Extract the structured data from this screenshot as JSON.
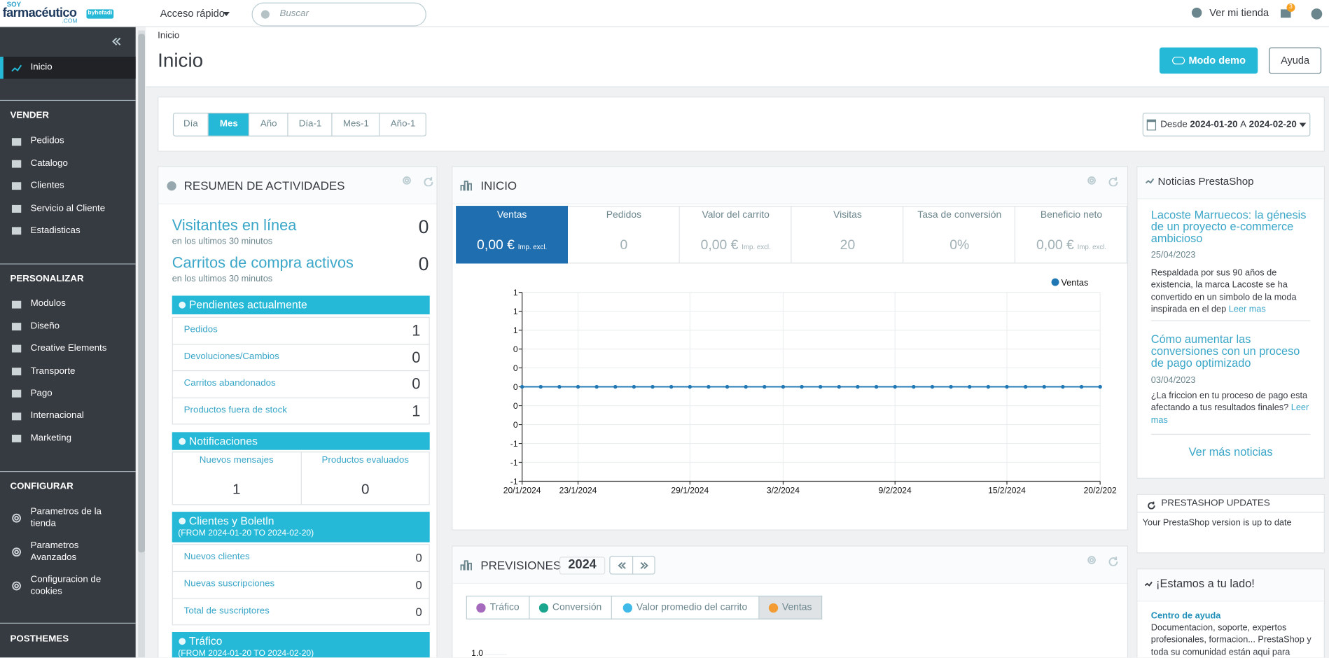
{
  "topbar": {
    "logo": {
      "small": "SOY",
      "main": "farmacéutico",
      "domain": ".COM",
      "badge": "byhefadi"
    },
    "quick_access": "Acceso rápido",
    "search_placeholder": "Buscar",
    "view_store": "Ver mi tienda",
    "notification_count": 3
  },
  "sidebar": {
    "active": "Inicio",
    "sections": [
      {
        "title": "VENDER",
        "items": [
          "Pedidos",
          "Catalogo",
          "Clientes",
          "Servicio al Cliente",
          "Estadisticas"
        ]
      },
      {
        "title": "PERSONALIZAR",
        "items": [
          "Modulos",
          "Diseño",
          "Creative Elements",
          "Transporte",
          "Pago",
          "Internacional",
          "Marketing"
        ]
      },
      {
        "title": "CONFIGURAR",
        "items": [
          "Parametros de la tienda",
          "Parametros Avanzados",
          "Configuracion de cookies"
        ]
      },
      {
        "title": "POSTHEMES",
        "items": []
      }
    ]
  },
  "breadcrumb": "Inicio",
  "page_title": "Inicio",
  "buttons": {
    "demo": "Modo demo",
    "help": "Ayuda"
  },
  "period": {
    "tabs": [
      "Día",
      "Mes",
      "Año",
      "Día-1",
      "Mes-1",
      "Año-1"
    ],
    "active": 1
  },
  "date_range": {
    "from_label": "Desde",
    "from": "2024-01-20",
    "to_label": "A",
    "to": "2024-02-20"
  },
  "activity": {
    "title": "RESUMEN DE ACTIVIDADES",
    "online": {
      "label": "Visitantes en línea",
      "sub": "en los ultimos 30 minutos",
      "value": 0
    },
    "carts": {
      "label": "Carritos de compra activos",
      "sub": "en los ultimos 30 minutos",
      "value": 0
    },
    "pending": {
      "title": "Pendientes actualmente",
      "rows": [
        {
          "label": "Pedidos",
          "value": 1
        },
        {
          "label": "Devoluciones/Cambios",
          "value": 0
        },
        {
          "label": "Carritos abandonados",
          "value": 0
        },
        {
          "label": "Productos fuera de stock",
          "value": 1
        }
      ]
    },
    "notifications": {
      "title": "Notificaciones",
      "cols": [
        {
          "label": "Nuevos mensajes",
          "value": 1
        },
        {
          "label": "Productos evaluados",
          "value": 0
        }
      ]
    },
    "customers": {
      "title": "Clientes y Boletln",
      "subtitle": "(FROM 2024-01-20 TO 2024-02-20)",
      "rows": [
        {
          "label": "Nuevos clientes",
          "value": 0
        },
        {
          "label": "Nuevas suscripciones",
          "value": 0
        },
        {
          "label": "Total de suscriptores",
          "value": 0
        }
      ]
    },
    "traffic": {
      "title": "Tráfico",
      "subtitle": "(FROM 2024-01-20 TO 2024-02-20)"
    }
  },
  "dashboard": {
    "title": "INICIO",
    "kpis": [
      {
        "label": "Ventas",
        "value": "0,00 €",
        "note": "Imp. excl."
      },
      {
        "label": "Pedidos",
        "value": "0"
      },
      {
        "label": "Valor del carrito",
        "value": "0,00 €",
        "note": "Imp. excl."
      },
      {
        "label": "Visitas",
        "value": "20"
      },
      {
        "label": "Tasa de conversión",
        "value": "0%"
      },
      {
        "label": "Beneficio neto",
        "value": "0,00 €",
        "note": "Imp. excl."
      }
    ],
    "chart": {
      "type": "line",
      "legend": "Ventas",
      "color": "#1f77b4",
      "x": [
        "20/1/2024",
        "21/1/2024",
        "22/1/2024",
        "23/1/2024",
        "24/1/2024",
        "25/1/2024",
        "26/1/2024",
        "27/1/2024",
        "28/1/2024",
        "29/1/2024",
        "30/1/2024",
        "31/1/2024",
        "1/2/2024",
        "2/2/2024",
        "3/2/2024",
        "4/2/2024",
        "5/2/2024",
        "6/2/2024",
        "7/2/2024",
        "8/2/2024",
        "9/2/2024",
        "10/2/2024",
        "11/2/2024",
        "12/2/2024",
        "13/2/2024",
        "14/2/2024",
        "15/2/2024",
        "16/2/2024",
        "17/2/2024",
        "18/2/2024",
        "19/2/2024",
        "20/2/2024"
      ],
      "values": [
        0,
        0,
        0,
        0,
        0,
        0,
        0,
        0,
        0,
        0,
        0,
        0,
        0,
        0,
        0,
        0,
        0,
        0,
        0,
        0,
        0,
        0,
        0,
        0,
        0,
        0,
        0,
        0,
        0,
        0,
        0,
        0
      ],
      "xticks": [
        "20/1/2024",
        "23/1/2024",
        "29/1/2024",
        "3/2/2024",
        "9/2/2024",
        "15/2/2024",
        {
          "value": "20/2/2024",
          "label": "20/2/202"
        }
      ],
      "ylim": [
        -1,
        1
      ],
      "yticks": [
        {
          "value": 1,
          "label": "1"
        },
        {
          "value": 0.8,
          "label": "1"
        },
        {
          "value": 0.6,
          "label": "1"
        },
        {
          "value": 0.4,
          "label": "0"
        },
        {
          "value": 0.2,
          "label": "0"
        },
        0,
        {
          "value": -0.2,
          "label": "0"
        },
        {
          "value": -0.4,
          "label": "0"
        },
        {
          "value": -0.6,
          "label": "-1"
        },
        {
          "value": -0.8,
          "label": "-1"
        },
        {
          "value": -1,
          "label": "-1"
        }
      ],
      "grid": true
    }
  },
  "forecast": {
    "title": "PREVISIONES",
    "year": 2024,
    "tabs": [
      {
        "label": "Tráfico",
        "color": "#a569bd"
      },
      {
        "label": "Conversión",
        "color": "#1aa68e"
      },
      {
        "label": "Valor promedio del carrito",
        "color": "#3fb9e8"
      },
      {
        "label": "Ventas",
        "color": "#f39c33"
      }
    ],
    "active": 3,
    "first_tick": "1.0"
  },
  "news": {
    "title": "Noticias PrestaShop",
    "items": [
      {
        "title": "Lacoste Marruecos: la génesis de un proyecto e-commerce ambicioso",
        "date": "25/04/2023",
        "text": "Respaldada por sus 90 años de existencia, la marca Lacoste se ha convertido en un simbolo de la moda inspirada en el dep",
        "more": "Leer mas"
      },
      {
        "title": "Cómo aumentar las conversiones con un proceso de pago optimizado",
        "date": "03/04/2023",
        "text": "¿La friccion en tu proceso de pago esta afectando a tus resultados finales?",
        "more": "Leer mas"
      }
    ],
    "more_link": "Ver más noticias"
  },
  "updates": {
    "title": "PRESTASHOP UPDATES",
    "text": "Your PrestaShop version is up to date"
  },
  "help": {
    "title": "¡Estamos a tu lado!",
    "link": "Centro de ayuda",
    "text": "Documentacion, soporte, expertos profesionales, formacion... PrestaShop y toda su comunidad están aqui para"
  }
}
